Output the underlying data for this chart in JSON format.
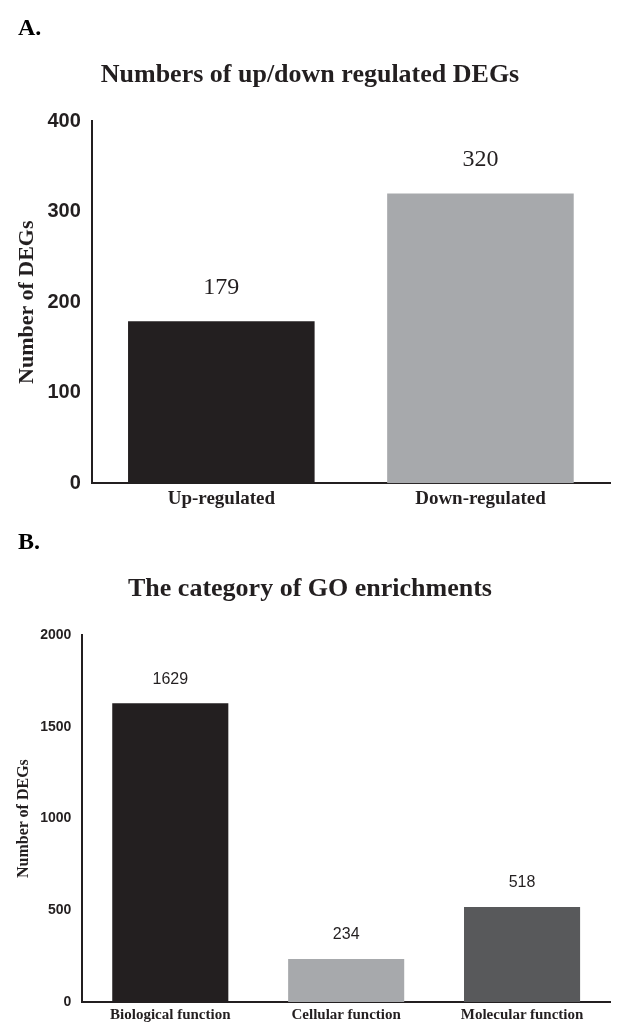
{
  "chart_data": [
    {
      "type": "bar",
      "annotations": [
        "A."
      ],
      "title": "Numbers of up/down regulated DEGs",
      "ylabel": "Number of DEGs",
      "categories": [
        "Up-regulated",
        "Down-regulated"
      ],
      "values": [
        179,
        320
      ],
      "colors": [
        "#231f20",
        "#a7a9ac"
      ],
      "ylim": [
        0,
        400
      ],
      "yticks": [
        0,
        100,
        200,
        300,
        400
      ],
      "grid": false,
      "legend": false,
      "data_labels": true
    },
    {
      "type": "bar",
      "annotations": [
        "B."
      ],
      "title": "The category of GO enrichments",
      "ylabel": "Number of DEGs",
      "categories": [
        "Biological function",
        "Cellular function",
        "Molecular function"
      ],
      "values": [
        1629,
        234,
        518
      ],
      "colors": [
        "#231f20",
        "#a7a9ac",
        "#58595b"
      ],
      "ylim": [
        0,
        2000
      ],
      "yticks": [
        0,
        500,
        1000,
        1500,
        2000
      ],
      "grid": false,
      "legend": false,
      "data_labels": true
    }
  ]
}
